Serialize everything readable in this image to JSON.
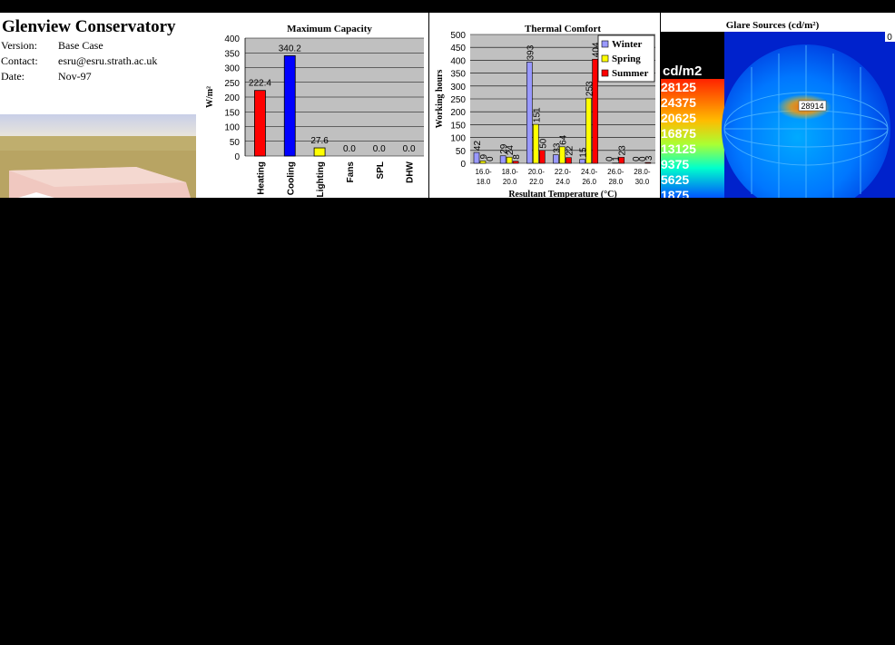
{
  "header": {
    "title": "Glenview Conservatory",
    "rows": [
      {
        "key": "Version:",
        "value": "Base Case"
      },
      {
        "key": "Contact:",
        "value": "esru@esru.strath.ac.uk"
      },
      {
        "key": "Date:",
        "value": "Nov-97"
      }
    ]
  },
  "chart_data": [
    {
      "type": "bar",
      "title": "Maximum Capacity",
      "ylabel": "W/m²",
      "xlabel": "",
      "ylim": [
        0,
        400
      ],
      "yticks": [
        0,
        50,
        100,
        150,
        200,
        250,
        300,
        350,
        400
      ],
      "categories": [
        "Heating",
        "Cooling",
        "Lighting",
        "Fans",
        "SPL",
        "DHW"
      ],
      "values": [
        222.4,
        340.2,
        27.6,
        0.0,
        0.0,
        0.0
      ],
      "value_labels": [
        "222.4",
        "340.2",
        "27.6",
        "0.0",
        "0.0",
        "0.0"
      ],
      "colors": [
        "#ff0000",
        "#0000ff",
        "#ffff00",
        "#c0c0c0",
        "#c0c0c0",
        "#c0c0c0"
      ],
      "plot_background": "#c0c0c0",
      "grid": true
    },
    {
      "type": "bar",
      "title": "Thermal Comfort",
      "ylabel": "Working hours",
      "xlabel": "Resultant Temperature (°C)",
      "ylim": [
        0,
        500
      ],
      "yticks": [
        0,
        50,
        100,
        150,
        200,
        250,
        300,
        350,
        400,
        450,
        500
      ],
      "categories": [
        [
          "16.0-",
          "18.0"
        ],
        [
          "18.0-",
          "20.0"
        ],
        [
          "20.0-",
          "22.0"
        ],
        [
          "22.0-",
          "24.0"
        ],
        [
          "24.0-",
          "26.0"
        ],
        [
          "26.0-",
          "28.0"
        ],
        [
          "28.0-",
          "30.0"
        ]
      ],
      "series": [
        {
          "name": "Winter",
          "color": "#9999ff",
          "values": [
            42,
            29,
            393,
            33,
            15,
            0,
            0
          ]
        },
        {
          "name": "Spring",
          "color": "#ffff00",
          "values": [
            9,
            24,
            151,
            64,
            253,
            1,
            0
          ]
        },
        {
          "name": "Summer",
          "color": "#ff0000",
          "values": [
            0,
            8,
            50,
            22,
            404,
            23,
            3
          ]
        }
      ],
      "legend": "top-right",
      "plot_background": "#c0c0c0",
      "grid": true
    }
  ],
  "glare": {
    "title": "Glare Sources (cd/m²)",
    "unit": "cd/m2",
    "scale": [
      "28125",
      "24375",
      "20625",
      "16875",
      "13125",
      "9375",
      "5625",
      "1875"
    ],
    "scale_colors": [
      "#ff3300",
      "#ff9900",
      "#ffee00",
      "#aaff22",
      "#33ff66",
      "#00ddff",
      "#0099ff",
      "#0044ff"
    ],
    "peak_label": "28914",
    "corner_label": "0"
  }
}
